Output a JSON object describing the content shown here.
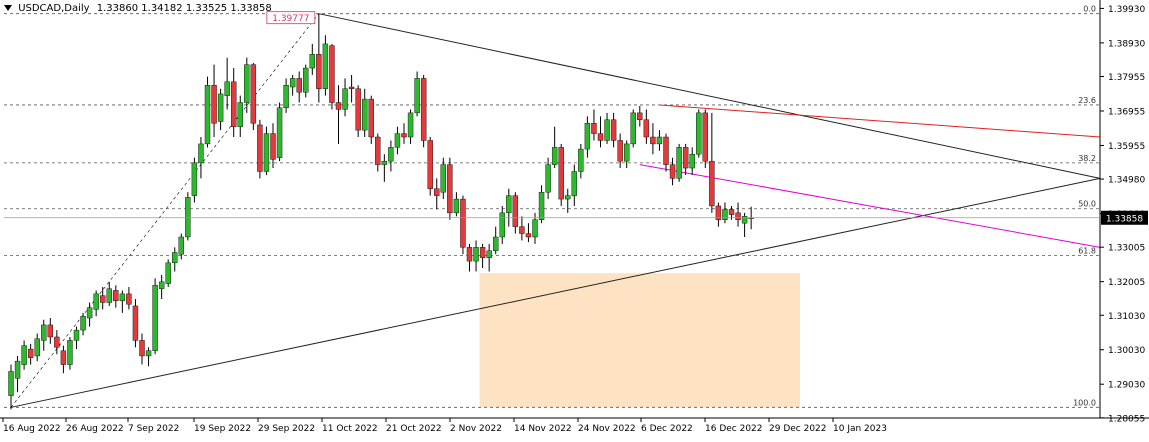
{
  "header": {
    "symbol": "USDCAD,Daily",
    "ohlc": "1.33860 1.34182 1.33525 1.33858"
  },
  "price_tag": "1.33858",
  "high_label": "1.39777",
  "colors": {
    "bull": "#2eb82e",
    "bear": "#e33b3b",
    "fib": "#555555",
    "trend_black": "#222222",
    "trend_red": "#e02020",
    "trend_magenta": "#e000e0",
    "zone": "#fde2c4",
    "tag_bg": "#000000",
    "high_label": "#e0306a"
  },
  "chart_data": {
    "type": "candlestick",
    "title": "USDCAD,Daily",
    "ylim": [
      1.2805,
      1.4
    ],
    "y_ticks": [
      "1.39930",
      "1.38930",
      "1.37955",
      "1.36955",
      "1.35955",
      "1.34980",
      "1.33980",
      "1.33005",
      "1.32005",
      "1.31030",
      "1.30030",
      "1.29030",
      "1.28055"
    ],
    "x_ticks": [
      "16 Aug 2022",
      "26 Aug 2022",
      "7 Sep 2022",
      "19 Sep 2022",
      "29 Sep 2022",
      "11 Oct 2022",
      "21 Oct 2022",
      "2 Nov 2022",
      "14 Nov 2022",
      "24 Nov 2022",
      "6 Dec 2022",
      "16 Dec 2022",
      "29 Dec 2022",
      "10 Jan 2023"
    ],
    "fibonacci": [
      {
        "label": "0.0",
        "price": 1.39777
      },
      {
        "label": "23.6",
        "price": 1.3713
      },
      {
        "label": "38.2",
        "price": 1.3545
      },
      {
        "label": "50.0",
        "price": 1.3412
      },
      {
        "label": "61.8",
        "price": 1.3276
      },
      {
        "label": "100.0",
        "price": 1.2836
      }
    ],
    "candles": [
      {
        "o": 1.287,
        "h": 1.296,
        "l": 1.283,
        "c": 1.294
      },
      {
        "o": 1.292,
        "h": 1.2985,
        "l": 1.288,
        "c": 1.297
      },
      {
        "o": 1.296,
        "h": 1.303,
        "l": 1.2945,
        "c": 1.3015
      },
      {
        "o": 1.3005,
        "h": 1.302,
        "l": 1.296,
        "c": 1.298
      },
      {
        "o": 1.2985,
        "h": 1.305,
        "l": 1.297,
        "c": 1.3035
      },
      {
        "o": 1.303,
        "h": 1.309,
        "l": 1.3,
        "c": 1.3075
      },
      {
        "o": 1.3075,
        "h": 1.3095,
        "l": 1.302,
        "c": 1.304
      },
      {
        "o": 1.304,
        "h": 1.306,
        "l": 1.299,
        "c": 1.301
      },
      {
        "o": 1.3,
        "h": 1.3015,
        "l": 1.2935,
        "c": 1.296
      },
      {
        "o": 1.296,
        "h": 1.304,
        "l": 1.2945,
        "c": 1.303
      },
      {
        "o": 1.303,
        "h": 1.307,
        "l": 1.3005,
        "c": 1.306
      },
      {
        "o": 1.306,
        "h": 1.311,
        "l": 1.3045,
        "c": 1.31
      },
      {
        "o": 1.3095,
        "h": 1.314,
        "l": 1.307,
        "c": 1.3125
      },
      {
        "o": 1.312,
        "h": 1.3175,
        "l": 1.31,
        "c": 1.3165
      },
      {
        "o": 1.316,
        "h": 1.3185,
        "l": 1.312,
        "c": 1.314
      },
      {
        "o": 1.314,
        "h": 1.32,
        "l": 1.313,
        "c": 1.318
      },
      {
        "o": 1.3175,
        "h": 1.319,
        "l": 1.3125,
        "c": 1.3145
      },
      {
        "o": 1.3145,
        "h": 1.3175,
        "l": 1.311,
        "c": 1.3165
      },
      {
        "o": 1.3165,
        "h": 1.3185,
        "l": 1.312,
        "c": 1.3135
      },
      {
        "o": 1.313,
        "h": 1.315,
        "l": 1.301,
        "c": 1.303
      },
      {
        "o": 1.303,
        "h": 1.305,
        "l": 1.296,
        "c": 1.2985
      },
      {
        "o": 1.2985,
        "h": 1.301,
        "l": 1.2955,
        "c": 1.3
      },
      {
        "o": 1.3,
        "h": 1.321,
        "l": 1.299,
        "c": 1.319
      },
      {
        "o": 1.318,
        "h": 1.322,
        "l": 1.315,
        "c": 1.32
      },
      {
        "o": 1.3195,
        "h": 1.3265,
        "l": 1.3185,
        "c": 1.3255
      },
      {
        "o": 1.3255,
        "h": 1.33,
        "l": 1.323,
        "c": 1.3285
      },
      {
        "o": 1.328,
        "h": 1.334,
        "l": 1.3265,
        "c": 1.333
      },
      {
        "o": 1.333,
        "h": 1.346,
        "l": 1.332,
        "c": 1.3445
      },
      {
        "o": 1.345,
        "h": 1.356,
        "l": 1.343,
        "c": 1.3545
      },
      {
        "o": 1.3545,
        "h": 1.362,
        "l": 1.35,
        "c": 1.36
      },
      {
        "o": 1.36,
        "h": 1.3795,
        "l": 1.359,
        "c": 1.377
      },
      {
        "o": 1.377,
        "h": 1.383,
        "l": 1.362,
        "c": 1.366
      },
      {
        "o": 1.3665,
        "h": 1.376,
        "l": 1.364,
        "c": 1.3745
      },
      {
        "o": 1.374,
        "h": 1.385,
        "l": 1.37,
        "c": 1.378
      },
      {
        "o": 1.378,
        "h": 1.382,
        "l": 1.362,
        "c": 1.365
      },
      {
        "o": 1.365,
        "h": 1.374,
        "l": 1.362,
        "c": 1.372
      },
      {
        "o": 1.372,
        "h": 1.385,
        "l": 1.369,
        "c": 1.383
      },
      {
        "o": 1.383,
        "h": 1.3835,
        "l": 1.364,
        "c": 1.366
      },
      {
        "o": 1.3655,
        "h": 1.367,
        "l": 1.35,
        "c": 1.352
      },
      {
        "o": 1.352,
        "h": 1.365,
        "l": 1.351,
        "c": 1.363
      },
      {
        "o": 1.363,
        "h": 1.366,
        "l": 1.353,
        "c": 1.3555
      },
      {
        "o": 1.356,
        "h": 1.372,
        "l": 1.355,
        "c": 1.3705
      },
      {
        "o": 1.3705,
        "h": 1.379,
        "l": 1.369,
        "c": 1.377
      },
      {
        "o": 1.3765,
        "h": 1.38,
        "l": 1.374,
        "c": 1.379
      },
      {
        "o": 1.379,
        "h": 1.381,
        "l": 1.372,
        "c": 1.375
      },
      {
        "o": 1.375,
        "h": 1.383,
        "l": 1.3735,
        "c": 1.382
      },
      {
        "o": 1.382,
        "h": 1.389,
        "l": 1.38,
        "c": 1.386
      },
      {
        "o": 1.386,
        "h": 1.3977,
        "l": 1.372,
        "c": 1.376
      },
      {
        "o": 1.376,
        "h": 1.3915,
        "l": 1.374,
        "c": 1.389
      },
      {
        "o": 1.3885,
        "h": 1.389,
        "l": 1.37,
        "c": 1.372
      },
      {
        "o": 1.372,
        "h": 1.377,
        "l": 1.36,
        "c": 1.37
      },
      {
        "o": 1.37,
        "h": 1.379,
        "l": 1.368,
        "c": 1.376
      },
      {
        "o": 1.3765,
        "h": 1.38,
        "l": 1.372,
        "c": 1.376
      },
      {
        "o": 1.376,
        "h": 1.377,
        "l": 1.362,
        "c": 1.364
      },
      {
        "o": 1.364,
        "h": 1.376,
        "l": 1.362,
        "c": 1.373
      },
      {
        "o": 1.373,
        "h": 1.374,
        "l": 1.36,
        "c": 1.362
      },
      {
        "o": 1.362,
        "h": 1.363,
        "l": 1.352,
        "c": 1.354
      },
      {
        "o": 1.354,
        "h": 1.357,
        "l": 1.349,
        "c": 1.355
      },
      {
        "o": 1.355,
        "h": 1.361,
        "l": 1.352,
        "c": 1.359
      },
      {
        "o": 1.359,
        "h": 1.365,
        "l": 1.357,
        "c": 1.363
      },
      {
        "o": 1.363,
        "h": 1.366,
        "l": 1.36,
        "c": 1.362
      },
      {
        "o": 1.362,
        "h": 1.37,
        "l": 1.36,
        "c": 1.369
      },
      {
        "o": 1.369,
        "h": 1.381,
        "l": 1.368,
        "c": 1.379
      },
      {
        "o": 1.379,
        "h": 1.38,
        "l": 1.359,
        "c": 1.361
      },
      {
        "o": 1.361,
        "h": 1.362,
        "l": 1.345,
        "c": 1.347
      },
      {
        "o": 1.347,
        "h": 1.35,
        "l": 1.341,
        "c": 1.345
      },
      {
        "o": 1.346,
        "h": 1.356,
        "l": 1.344,
        "c": 1.354
      },
      {
        "o": 1.354,
        "h": 1.356,
        "l": 1.338,
        "c": 1.34
      },
      {
        "o": 1.34,
        "h": 1.346,
        "l": 1.339,
        "c": 1.344
      },
      {
        "o": 1.344,
        "h": 1.345,
        "l": 1.328,
        "c": 1.33
      },
      {
        "o": 1.33,
        "h": 1.331,
        "l": 1.323,
        "c": 1.326
      },
      {
        "o": 1.326,
        "h": 1.332,
        "l": 1.323,
        "c": 1.33
      },
      {
        "o": 1.33,
        "h": 1.331,
        "l": 1.324,
        "c": 1.327
      },
      {
        "o": 1.327,
        "h": 1.331,
        "l": 1.323,
        "c": 1.329
      },
      {
        "o": 1.329,
        "h": 1.336,
        "l": 1.328,
        "c": 1.333
      },
      {
        "o": 1.333,
        "h": 1.342,
        "l": 1.331,
        "c": 1.34
      },
      {
        "o": 1.34,
        "h": 1.347,
        "l": 1.336,
        "c": 1.345
      },
      {
        "o": 1.345,
        "h": 1.346,
        "l": 1.334,
        "c": 1.336
      },
      {
        "o": 1.336,
        "h": 1.339,
        "l": 1.332,
        "c": 1.334
      },
      {
        "o": 1.334,
        "h": 1.337,
        "l": 1.3315,
        "c": 1.333
      },
      {
        "o": 1.333,
        "h": 1.34,
        "l": 1.331,
        "c": 1.338
      },
      {
        "o": 1.338,
        "h": 1.348,
        "l": 1.337,
        "c": 1.346
      },
      {
        "o": 1.346,
        "h": 1.356,
        "l": 1.344,
        "c": 1.354
      },
      {
        "o": 1.354,
        "h": 1.365,
        "l": 1.353,
        "c": 1.359
      },
      {
        "o": 1.359,
        "h": 1.36,
        "l": 1.342,
        "c": 1.344
      },
      {
        "o": 1.344,
        "h": 1.347,
        "l": 1.34,
        "c": 1.345
      },
      {
        "o": 1.345,
        "h": 1.354,
        "l": 1.342,
        "c": 1.352
      },
      {
        "o": 1.352,
        "h": 1.36,
        "l": 1.35,
        "c": 1.3585
      },
      {
        "o": 1.3585,
        "h": 1.368,
        "l": 1.356,
        "c": 1.366
      },
      {
        "o": 1.366,
        "h": 1.37,
        "l": 1.361,
        "c": 1.363
      },
      {
        "o": 1.363,
        "h": 1.368,
        "l": 1.359,
        "c": 1.361
      },
      {
        "o": 1.361,
        "h": 1.369,
        "l": 1.36,
        "c": 1.367
      },
      {
        "o": 1.367,
        "h": 1.369,
        "l": 1.359,
        "c": 1.361
      },
      {
        "o": 1.361,
        "h": 1.363,
        "l": 1.353,
        "c": 1.355
      },
      {
        "o": 1.355,
        "h": 1.361,
        "l": 1.353,
        "c": 1.36
      },
      {
        "o": 1.36,
        "h": 1.37,
        "l": 1.359,
        "c": 1.369
      },
      {
        "o": 1.369,
        "h": 1.371,
        "l": 1.365,
        "c": 1.367
      },
      {
        "o": 1.367,
        "h": 1.37,
        "l": 1.36,
        "c": 1.362
      },
      {
        "o": 1.362,
        "h": 1.366,
        "l": 1.357,
        "c": 1.36
      },
      {
        "o": 1.36,
        "h": 1.364,
        "l": 1.358,
        "c": 1.362
      },
      {
        "o": 1.362,
        "h": 1.363,
        "l": 1.352,
        "c": 1.354
      },
      {
        "o": 1.354,
        "h": 1.356,
        "l": 1.348,
        "c": 1.35
      },
      {
        "o": 1.35,
        "h": 1.36,
        "l": 1.349,
        "c": 1.359
      },
      {
        "o": 1.359,
        "h": 1.36,
        "l": 1.351,
        "c": 1.353
      },
      {
        "o": 1.353,
        "h": 1.359,
        "l": 1.351,
        "c": 1.357
      },
      {
        "o": 1.357,
        "h": 1.37,
        "l": 1.356,
        "c": 1.369
      },
      {
        "o": 1.369,
        "h": 1.37,
        "l": 1.353,
        "c": 1.355
      },
      {
        "o": 1.355,
        "h": 1.369,
        "l": 1.34,
        "c": 1.342
      },
      {
        "o": 1.342,
        "h": 1.343,
        "l": 1.336,
        "c": 1.338
      },
      {
        "o": 1.338,
        "h": 1.343,
        "l": 1.337,
        "c": 1.341
      },
      {
        "o": 1.341,
        "h": 1.342,
        "l": 1.338,
        "c": 1.3395
      },
      {
        "o": 1.34,
        "h": 1.343,
        "l": 1.336,
        "c": 1.338
      },
      {
        "o": 1.337,
        "h": 1.34,
        "l": 1.333,
        "c": 1.339
      },
      {
        "o": 1.3386,
        "h": 1.3418,
        "l": 1.33525,
        "c": 1.33858
      }
    ],
    "trendlines": [
      {
        "name": "black-lower",
        "from": [
          0,
          1.2836
        ],
        "to": [
          140,
          1.35
        ]
      },
      {
        "name": "black-upper",
        "from": [
          47,
          1.39777
        ],
        "to": [
          140,
          1.35
        ]
      },
      {
        "name": "red",
        "from": [
          99,
          1.3713
        ],
        "to": [
          140,
          1.362
        ]
      },
      {
        "name": "magenta",
        "from": [
          96,
          1.354
        ],
        "to": [
          140,
          1.33
        ]
      },
      {
        "name": "fib-dashed",
        "from": [
          0,
          1.2836
        ],
        "to": [
          47,
          1.39777
        ]
      }
    ],
    "zone": {
      "from": 72,
      "to": 120,
      "top": 1.3225,
      "bottom": 1.2836
    },
    "grid": false,
    "legend": "none"
  }
}
